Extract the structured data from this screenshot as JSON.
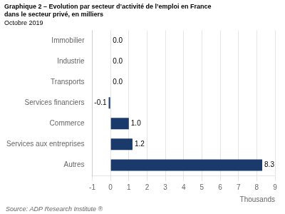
{
  "chart_data": {
    "type": "bar",
    "orientation": "horizontal",
    "title": [
      "Graphique 2 – Evolution par secteur d’activité de l’emploi en France",
      "dans le secteur privé, en milliers"
    ],
    "subtitle": "Octobre 2019",
    "source": "Source: ADP Research Institute ®",
    "categories": [
      "Autres",
      "Services aux entreprises",
      "Commerce",
      "Services financiers",
      "Transports",
      "Industrie",
      "Immobilier"
    ],
    "values": [
      8.3,
      1.2,
      1.0,
      -0.1,
      0.0,
      0.0,
      0.0
    ],
    "value_labels": [
      "8.3",
      "1.2",
      "1.0",
      "-0.1",
      "0.0",
      "0.0",
      "0.0"
    ],
    "data_labels": true,
    "color": "#1a3a6b",
    "xlabel": "Thousands",
    "xlim": [
      -1,
      9
    ],
    "xticks": [
      -1,
      0,
      1,
      2,
      3,
      4,
      5,
      6,
      7,
      8,
      9
    ],
    "grid": "x"
  }
}
